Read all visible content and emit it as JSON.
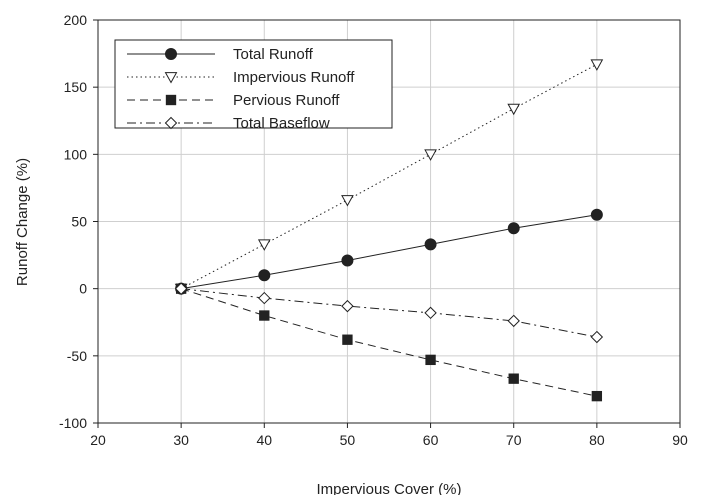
{
  "chart_data": {
    "type": "line",
    "title": "",
    "xlabel": "Impervious Cover (%)",
    "ylabel": "Runoff Change (%)",
    "xlim": [
      20,
      90
    ],
    "ylim": [
      -100,
      200
    ],
    "xticks": [
      20,
      30,
      40,
      50,
      60,
      70,
      80,
      90
    ],
    "yticks": [
      -100,
      -50,
      0,
      50,
      100,
      150,
      200
    ],
    "grid": true,
    "legend_position": "top-left",
    "x": [
      30,
      40,
      50,
      60,
      70,
      80
    ],
    "series": [
      {
        "name": "Total Runoff",
        "values": [
          0,
          10,
          21,
          33,
          45,
          55
        ],
        "line": "solid",
        "marker": "circle-filled",
        "color": "#222222"
      },
      {
        "name": "Impervious Runoff",
        "values": [
          0,
          33,
          66,
          100,
          134,
          167
        ],
        "line": "dotted",
        "marker": "triangle-down-open",
        "color": "#222222"
      },
      {
        "name": "Pervious Runoff",
        "values": [
          0,
          -20,
          -38,
          -53,
          -67,
          -80
        ],
        "line": "dashed",
        "marker": "square-filled",
        "color": "#222222"
      },
      {
        "name": "Total Baseflow",
        "values": [
          0,
          -7,
          -13,
          -18,
          -24,
          -36
        ],
        "line": "dashdot",
        "marker": "diamond-open",
        "color": "#222222"
      }
    ]
  }
}
